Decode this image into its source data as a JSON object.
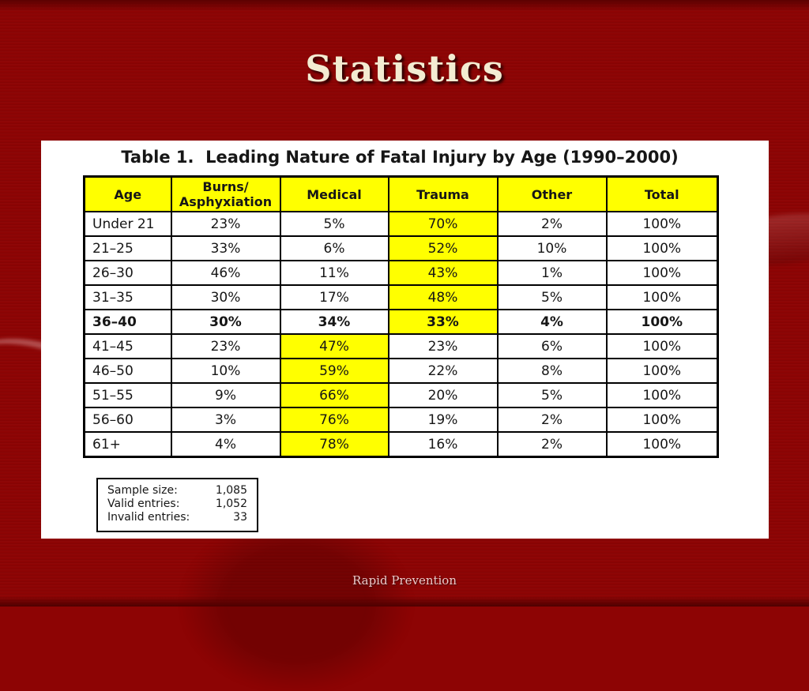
{
  "slide": {
    "title": "Statistics",
    "footer": "Rapid Prevention",
    "colors": {
      "background_red": "#8d0404",
      "title_ivory": "#f3ecd2",
      "footer_pink": "#eccaca",
      "highlight_yellow": "#ffff00",
      "panel_white": "#ffffff",
      "table_border_black": "#000000"
    }
  },
  "table": {
    "caption": "Table 1.  Leading Nature of Fatal Injury by Age (1990–2000)",
    "columns": [
      "Age",
      "Burns/\nAsphyxiation",
      "Medical",
      "Trauma",
      "Other",
      "Total"
    ],
    "fields": [
      "age",
      "burns",
      "medical",
      "trauma",
      "other",
      "total"
    ],
    "rows": [
      {
        "age": "Under 21",
        "burns": "23%",
        "medical": "5%",
        "trauma": "70%",
        "other": "2%",
        "total": "100%",
        "highlight": "trauma",
        "bold": false
      },
      {
        "age": "21–25",
        "burns": "33%",
        "medical": "6%",
        "trauma": "52%",
        "other": "10%",
        "total": "100%",
        "highlight": "trauma",
        "bold": false
      },
      {
        "age": "26–30",
        "burns": "46%",
        "medical": "11%",
        "trauma": "43%",
        "other": "1%",
        "total": "100%",
        "highlight": "trauma",
        "bold": false
      },
      {
        "age": "31–35",
        "burns": "30%",
        "medical": "17%",
        "trauma": "48%",
        "other": "5%",
        "total": "100%",
        "highlight": "trauma",
        "bold": false
      },
      {
        "age": "36–40",
        "burns": "30%",
        "medical": "34%",
        "trauma": "33%",
        "other": "4%",
        "total": "100%",
        "highlight": "trauma",
        "bold": true
      },
      {
        "age": "41–45",
        "burns": "23%",
        "medical": "47%",
        "trauma": "23%",
        "other": "6%",
        "total": "100%",
        "highlight": "medical",
        "bold": false
      },
      {
        "age": "46–50",
        "burns": "10%",
        "medical": "59%",
        "trauma": "22%",
        "other": "8%",
        "total": "100%",
        "highlight": "medical",
        "bold": false
      },
      {
        "age": "51–55",
        "burns": "9%",
        "medical": "66%",
        "trauma": "20%",
        "other": "5%",
        "total": "100%",
        "highlight": "medical",
        "bold": false
      },
      {
        "age": "56–60",
        "burns": "3%",
        "medical": "76%",
        "trauma": "19%",
        "other": "2%",
        "total": "100%",
        "highlight": "medical",
        "bold": false
      },
      {
        "age": "61+",
        "burns": "4%",
        "medical": "78%",
        "trauma": "16%",
        "other": "2%",
        "total": "100%",
        "highlight": "medical",
        "bold": false
      }
    ]
  },
  "sample_box": {
    "rows": [
      {
        "label": "Sample size:",
        "value": "1,085"
      },
      {
        "label": "Valid entries:",
        "value": "1,052"
      },
      {
        "label": "Invalid entries:",
        "value": "33"
      }
    ]
  }
}
